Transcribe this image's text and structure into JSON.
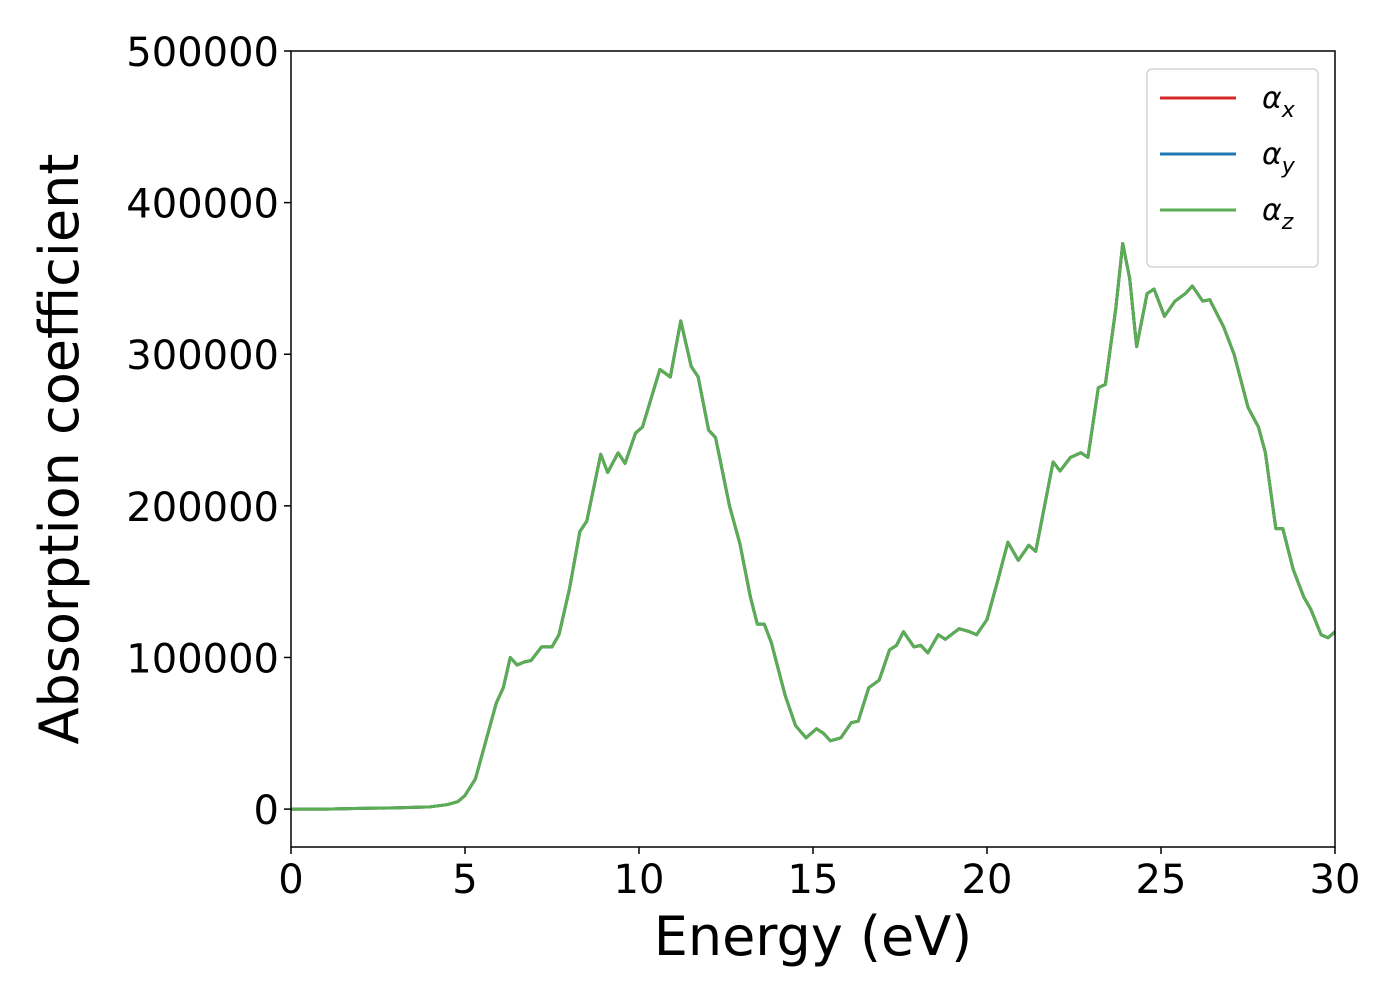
{
  "chart_data": {
    "type": "line",
    "xlabel": "Energy (eV)",
    "ylabel": "Absorption coefficient",
    "x": [
      0,
      1,
      2,
      3,
      4,
      4.5,
      4.8,
      5,
      5.3,
      5.6,
      5.9,
      6.1,
      6.3,
      6.5,
      6.7,
      6.9,
      7.2,
      7.5,
      7.7,
      8.0,
      8.3,
      8.5,
      8.9,
      9.1,
      9.4,
      9.6,
      9.9,
      10.1,
      10.6,
      10.9,
      11.2,
      11.5,
      11.7,
      12.0,
      12.2,
      12.6,
      12.9,
      13.2,
      13.4,
      13.6,
      13.8,
      14.2,
      14.5,
      14.8,
      15.1,
      15.3,
      15.5,
      15.8,
      16.1,
      16.3,
      16.6,
      16.9,
      17.2,
      17.4,
      17.6,
      17.9,
      18.1,
      18.3,
      18.6,
      18.8,
      19.2,
      19.5,
      19.7,
      20.0,
      20.3,
      20.6,
      20.9,
      21.2,
      21.4,
      21.9,
      22.1,
      22.4,
      22.7,
      22.9,
      23.2,
      23.4,
      23.7,
      23.9,
      24.1,
      24.3,
      24.6,
      24.8,
      25.1,
      25.4,
      25.7,
      25.9,
      26.2,
      26.4,
      26.8,
      27.1,
      27.5,
      27.8,
      28.0,
      28.3,
      28.5,
      28.8,
      29.1,
      29.3,
      29.6,
      29.8,
      30
    ],
    "series": [
      {
        "name": "αx",
        "color": "#d62728",
        "values": [
          0,
          0,
          500,
          800,
          1500,
          3000,
          5000,
          9000,
          20000,
          45000,
          70000,
          80000,
          100000,
          95000,
          97000,
          98000,
          107000,
          107000,
          115000,
          145000,
          183000,
          190000,
          234000,
          222000,
          235000,
          228000,
          248000,
          252000,
          290000,
          285000,
          322000,
          292000,
          285000,
          250000,
          245000,
          200000,
          175000,
          140000,
          122000,
          122000,
          110000,
          75000,
          55000,
          47000,
          53000,
          50000,
          45000,
          47000,
          57000,
          58000,
          80000,
          85000,
          105000,
          108000,
          117000,
          107000,
          108000,
          103000,
          115000,
          112000,
          119000,
          117000,
          115000,
          125000,
          150000,
          176000,
          164000,
          174000,
          170000,
          229000,
          223000,
          232000,
          235000,
          232000,
          278000,
          280000,
          330000,
          373000,
          350000,
          305000,
          340000,
          343000,
          325000,
          335000,
          340000,
          345000,
          335000,
          336000,
          318000,
          300000,
          265000,
          252000,
          235000,
          185000,
          185000,
          158000,
          140000,
          132000,
          115000,
          113000,
          117000
        ]
      },
      {
        "name": "αy",
        "color": "#1f77b4",
        "values": [
          0,
          0,
          500,
          800,
          1500,
          3000,
          5000,
          9000,
          20000,
          45000,
          70000,
          80000,
          100000,
          95000,
          97000,
          98000,
          107000,
          107000,
          115000,
          145000,
          183000,
          190000,
          234000,
          222000,
          235000,
          228000,
          248000,
          252000,
          290000,
          285000,
          322000,
          292000,
          285000,
          250000,
          245000,
          200000,
          175000,
          140000,
          122000,
          122000,
          110000,
          75000,
          55000,
          47000,
          53000,
          50000,
          45000,
          47000,
          57000,
          58000,
          80000,
          85000,
          105000,
          108000,
          117000,
          107000,
          108000,
          103000,
          115000,
          112000,
          119000,
          117000,
          115000,
          125000,
          150000,
          176000,
          164000,
          174000,
          170000,
          229000,
          223000,
          232000,
          235000,
          232000,
          278000,
          280000,
          330000,
          373000,
          350000,
          305000,
          340000,
          343000,
          325000,
          335000,
          340000,
          345000,
          335000,
          336000,
          318000,
          300000,
          265000,
          252000,
          235000,
          185000,
          185000,
          158000,
          140000,
          132000,
          115000,
          113000,
          117000
        ]
      },
      {
        "name": "αz",
        "color": "#5aad52",
        "values": [
          0,
          0,
          500,
          800,
          1500,
          3000,
          5000,
          9000,
          20000,
          45000,
          70000,
          80000,
          100000,
          95000,
          97000,
          98000,
          107000,
          107000,
          115000,
          145000,
          183000,
          190000,
          234000,
          222000,
          235000,
          228000,
          248000,
          252000,
          290000,
          285000,
          322000,
          292000,
          285000,
          250000,
          245000,
          200000,
          175000,
          140000,
          122000,
          122000,
          110000,
          75000,
          55000,
          47000,
          53000,
          50000,
          45000,
          47000,
          57000,
          58000,
          80000,
          85000,
          105000,
          108000,
          117000,
          107000,
          108000,
          103000,
          115000,
          112000,
          119000,
          117000,
          115000,
          125000,
          150000,
          176000,
          164000,
          174000,
          170000,
          229000,
          223000,
          232000,
          235000,
          232000,
          278000,
          280000,
          330000,
          373000,
          350000,
          305000,
          340000,
          343000,
          325000,
          335000,
          340000,
          345000,
          335000,
          336000,
          318000,
          300000,
          265000,
          252000,
          235000,
          185000,
          185000,
          158000,
          140000,
          132000,
          115000,
          113000,
          117000
        ]
      }
    ],
    "xlim": [
      0,
      30
    ],
    "xticks": [
      0,
      5,
      10,
      15,
      20,
      25,
      30
    ],
    "ylim": [
      -25000,
      500000
    ],
    "yticks": [
      0,
      100000,
      200000,
      300000,
      400000,
      500000
    ],
    "grid": false,
    "legend": "upper right"
  }
}
